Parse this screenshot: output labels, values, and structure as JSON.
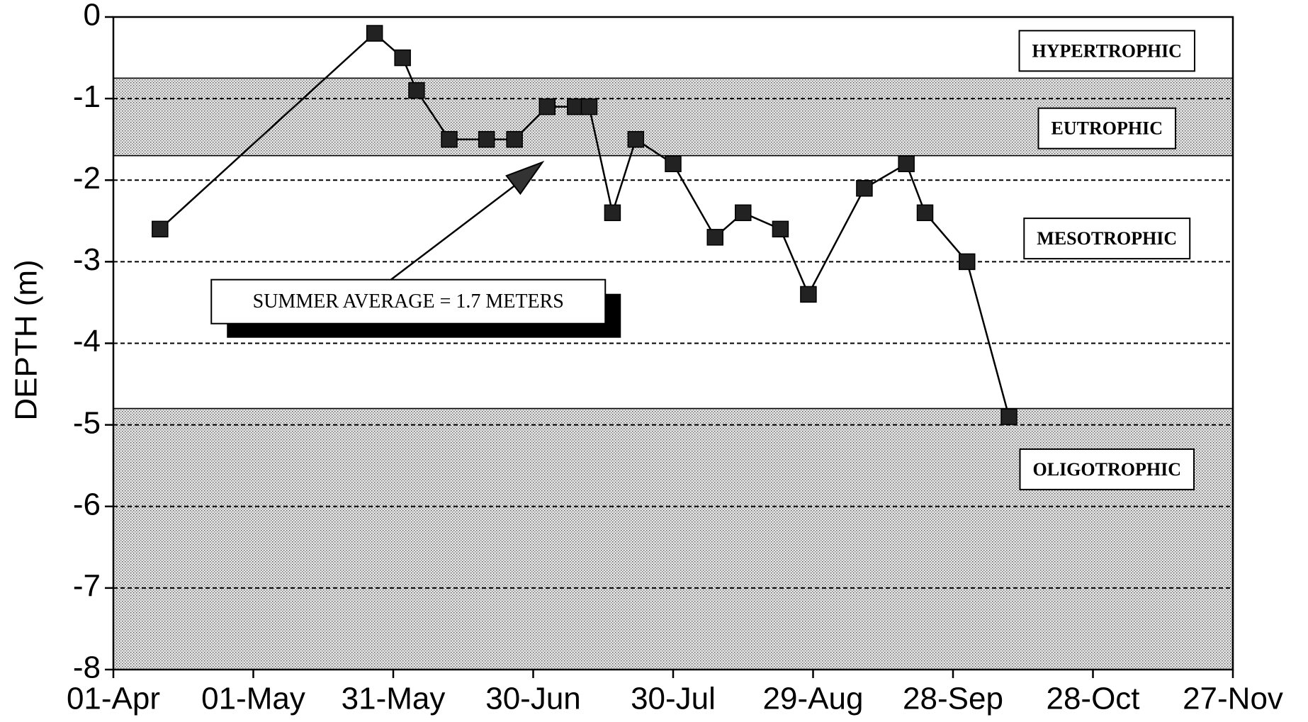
{
  "chart_data": {
    "type": "line",
    "ylabel": "DEPTH (m)",
    "x": [
      "11-Apr",
      "27-May",
      "02-Jun",
      "05-Jun",
      "12-Jun",
      "20-Jun",
      "26-Jun",
      "03-Jul",
      "09-Jul",
      "12-Jul",
      "17-Jul",
      "22-Jul",
      "30-Jul",
      "08-Aug",
      "14-Aug",
      "22-Aug",
      "28-Aug",
      "09-Sep",
      "18-Sep",
      "22-Sep",
      "01-Oct",
      "10-Oct"
    ],
    "values": [
      -2.6,
      -0.2,
      -0.5,
      -0.9,
      -1.5,
      -1.5,
      -1.5,
      -1.1,
      -1.1,
      -1.1,
      -2.4,
      -1.5,
      -1.8,
      -2.7,
      -2.4,
      -2.6,
      -3.4,
      -2.1,
      -1.8,
      -2.4,
      -3.0,
      -4.9
    ],
    "color": "#000000",
    "xlim": [
      "01-Apr",
      "27-Nov"
    ],
    "xticks": [
      "01-Apr",
      "01-May",
      "31-May",
      "30-Jun",
      "30-Jul",
      "29-Aug",
      "28-Sep",
      "28-Oct",
      "27-Nov"
    ],
    "ylim": [
      -8,
      0
    ],
    "yticks": [
      0,
      -1,
      -2,
      -3,
      -4,
      -5,
      -6,
      -7,
      -8
    ],
    "grid": true,
    "zones": [
      {
        "label": "HYPERTROPHIC",
        "from": 0,
        "to": -0.75,
        "shaded": false
      },
      {
        "label": "EUTROPHIC",
        "from": -0.75,
        "to": -1.7,
        "shaded": true
      },
      {
        "label": "MESOTROPHIC",
        "from": -1.7,
        "to": -4.8,
        "shaded": false
      },
      {
        "label": "OLIGOTROPHIC",
        "from": -4.8,
        "to": -8,
        "shaded": true
      }
    ],
    "annotation": "SUMMER AVERAGE = 1.7 METERS"
  }
}
